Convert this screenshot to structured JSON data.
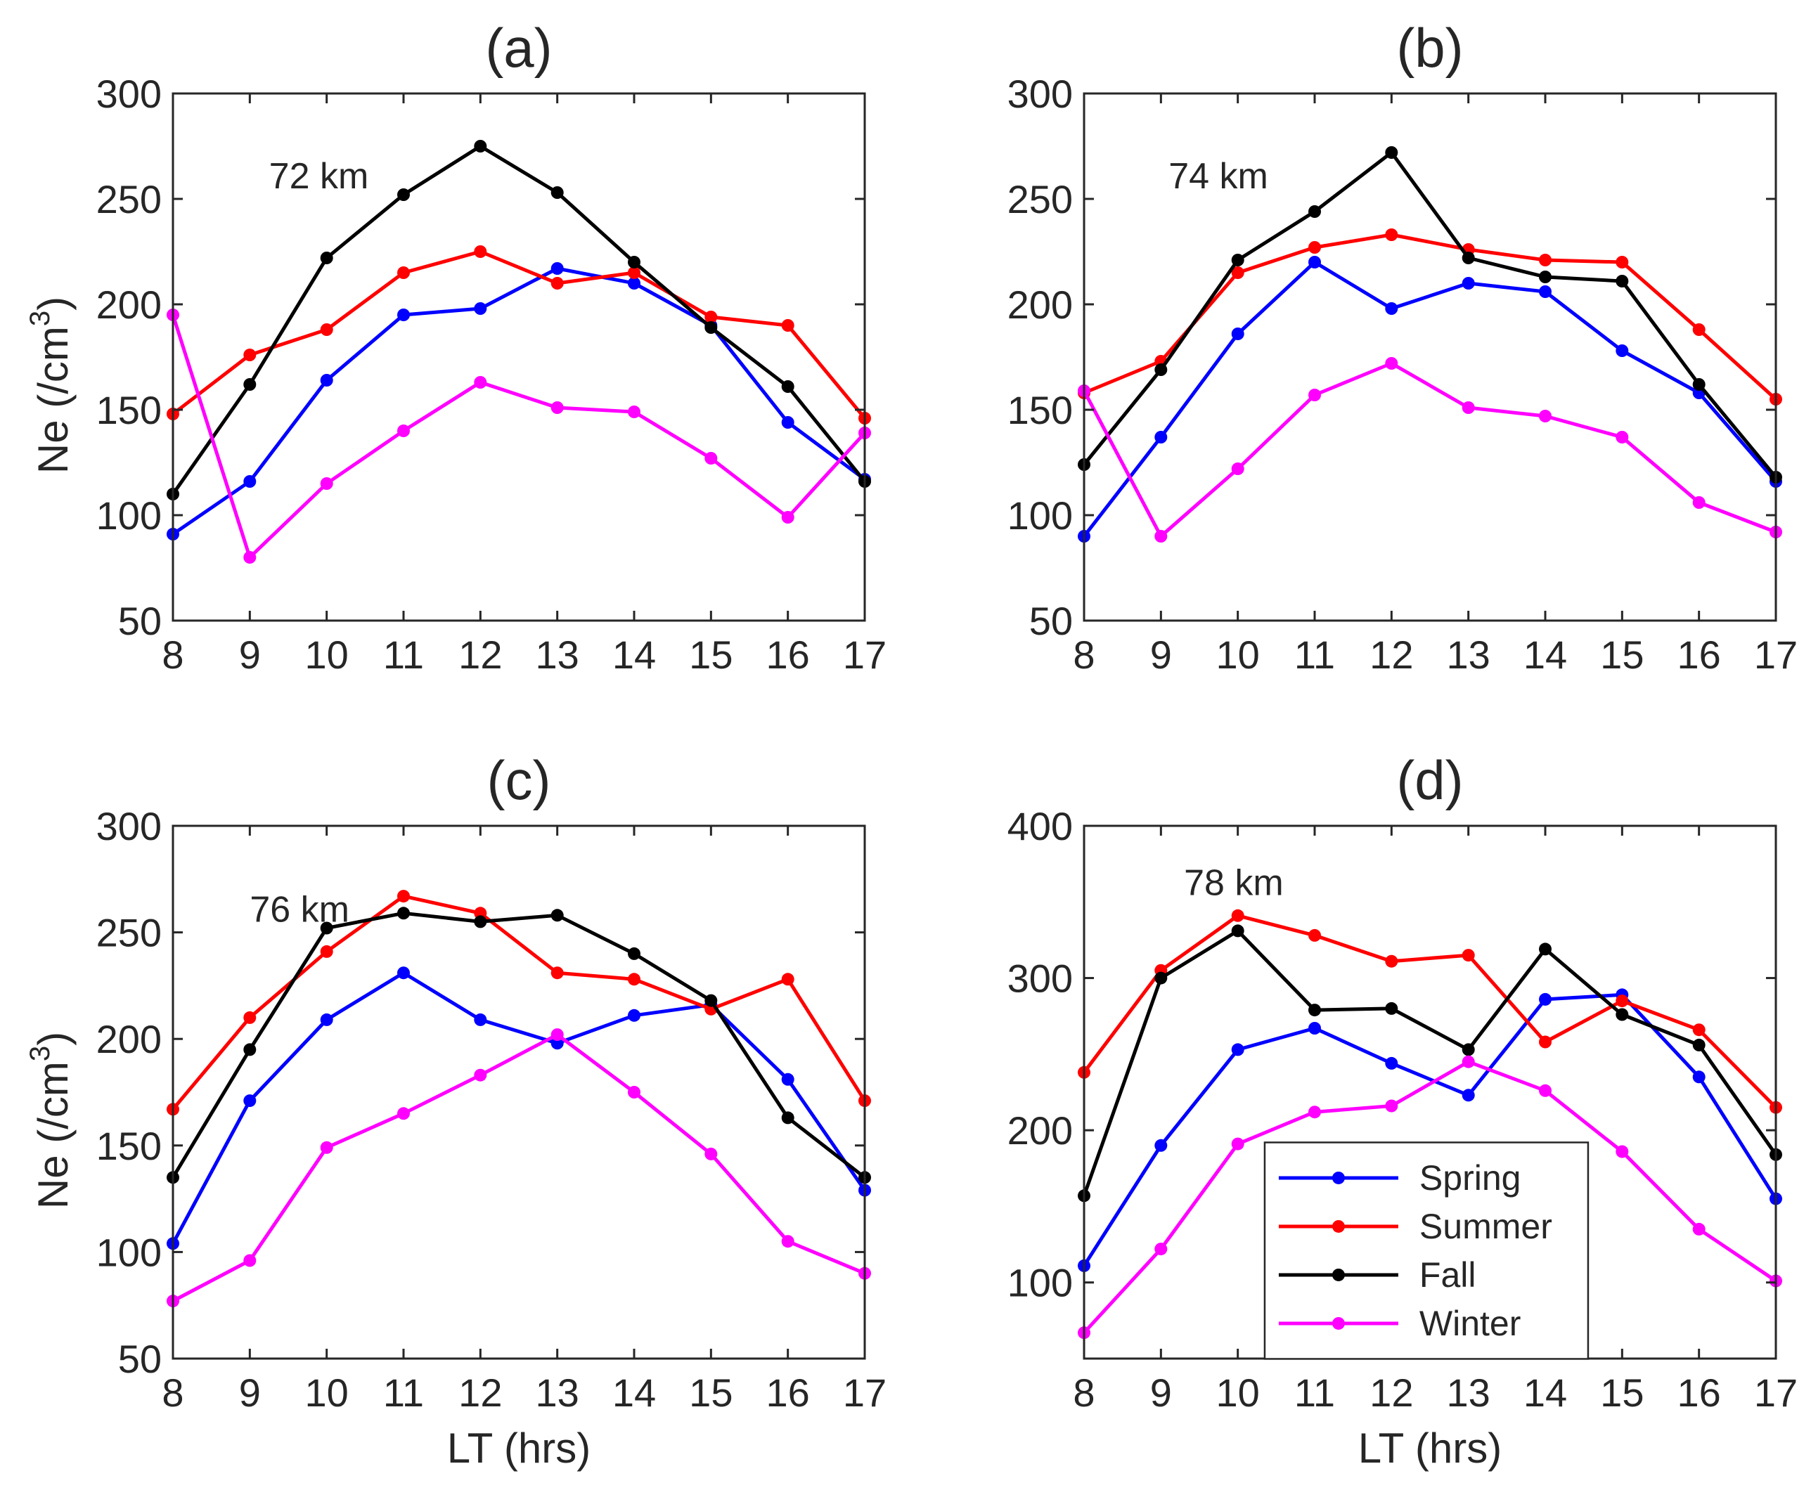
{
  "chart_data": [
    {
      "type": "line",
      "panel": "a",
      "title": "(a)",
      "annotation": "72 km",
      "xlabel": "",
      "ylabel": "Ne (/cm",
      "ylabel_superscript": "3",
      "ylabel_suffix": ")",
      "xlim": [
        8,
        17
      ],
      "ylim": [
        50,
        300
      ],
      "x": [
        8,
        9,
        10,
        11,
        12,
        13,
        14,
        15,
        16,
        17
      ],
      "xticks": [
        8,
        9,
        10,
        11,
        12,
        13,
        14,
        15,
        16,
        17
      ],
      "yticks": [
        50,
        100,
        150,
        200,
        250,
        300
      ],
      "grid": false,
      "legend": false,
      "series": [
        {
          "name": "Spring",
          "color": "#0000ff",
          "values": [
            91,
            116,
            164,
            195,
            198,
            217,
            210,
            190,
            144,
            117
          ]
        },
        {
          "name": "Summer",
          "color": "#ff0000",
          "values": [
            148,
            176,
            188,
            215,
            225,
            210,
            215,
            194,
            190,
            146
          ]
        },
        {
          "name": "Fall",
          "color": "#000000",
          "values": [
            110,
            162,
            222,
            252,
            275,
            253,
            220,
            189,
            161,
            116
          ]
        },
        {
          "name": "Winter",
          "color": "#ff00ff",
          "values": [
            195,
            80,
            115,
            140,
            163,
            151,
            149,
            127,
            99,
            139
          ]
        }
      ]
    },
    {
      "type": "line",
      "panel": "b",
      "title": "(b)",
      "annotation": "74 km",
      "xlabel": "",
      "ylabel": "",
      "xlim": [
        8,
        17
      ],
      "ylim": [
        50,
        300
      ],
      "x": [
        8,
        9,
        10,
        11,
        12,
        13,
        14,
        15,
        16,
        17
      ],
      "xticks": [
        8,
        9,
        10,
        11,
        12,
        13,
        14,
        15,
        16,
        17
      ],
      "yticks": [
        50,
        100,
        150,
        200,
        250,
        300
      ],
      "grid": false,
      "legend": false,
      "series": [
        {
          "name": "Spring",
          "color": "#0000ff",
          "values": [
            90,
            137,
            186,
            220,
            198,
            210,
            206,
            178,
            158,
            116
          ]
        },
        {
          "name": "Summer",
          "color": "#ff0000",
          "values": [
            158,
            173,
            215,
            227,
            233,
            226,
            221,
            220,
            188,
            155
          ]
        },
        {
          "name": "Fall",
          "color": "#000000",
          "values": [
            124,
            169,
            221,
            244,
            272,
            222,
            213,
            211,
            162,
            118
          ]
        },
        {
          "name": "Winter",
          "color": "#ff00ff",
          "values": [
            159,
            90,
            122,
            157,
            172,
            151,
            147,
            137,
            106,
            92
          ]
        }
      ]
    },
    {
      "type": "line",
      "panel": "c",
      "title": "(c)",
      "annotation": "76 km",
      "xlabel": "LT (hrs)",
      "ylabel": "Ne (/cm",
      "ylabel_superscript": "3",
      "ylabel_suffix": ")",
      "xlim": [
        8,
        17
      ],
      "ylim": [
        50,
        300
      ],
      "x": [
        8,
        9,
        10,
        11,
        12,
        13,
        14,
        15,
        16,
        17
      ],
      "xticks": [
        8,
        9,
        10,
        11,
        12,
        13,
        14,
        15,
        16,
        17
      ],
      "yticks": [
        50,
        100,
        150,
        200,
        250,
        300
      ],
      "grid": false,
      "legend": false,
      "series": [
        {
          "name": "Spring",
          "color": "#0000ff",
          "values": [
            104,
            171,
            209,
            231,
            209,
            198,
            211,
            216,
            181,
            129
          ]
        },
        {
          "name": "Summer",
          "color": "#ff0000",
          "values": [
            167,
            210,
            241,
            267,
            259,
            231,
            228,
            214,
            228,
            171
          ]
        },
        {
          "name": "Fall",
          "color": "#000000",
          "values": [
            135,
            195,
            252,
            259,
            255,
            258,
            240,
            218,
            163,
            135
          ]
        },
        {
          "name": "Winter",
          "color": "#ff00ff",
          "values": [
            77,
            96,
            149,
            165,
            183,
            202,
            175,
            146,
            105,
            90
          ]
        }
      ]
    },
    {
      "type": "line",
      "panel": "d",
      "title": "(d)",
      "annotation": "78 km",
      "xlabel": "LT (hrs)",
      "ylabel": "",
      "xlim": [
        8,
        17
      ],
      "ylim": [
        50,
        400
      ],
      "x": [
        8,
        9,
        10,
        11,
        12,
        13,
        14,
        15,
        16,
        17
      ],
      "xticks": [
        8,
        9,
        10,
        11,
        12,
        13,
        14,
        15,
        16,
        17
      ],
      "yticks": [
        100,
        200,
        300,
        400
      ],
      "grid": false,
      "legend": true,
      "legend_position": "bottom-center",
      "series": [
        {
          "name": "Spring",
          "color": "#0000ff",
          "values": [
            111,
            190,
            253,
            267,
            244,
            223,
            286,
            289,
            235,
            155
          ]
        },
        {
          "name": "Summer",
          "color": "#ff0000",
          "values": [
            238,
            305,
            341,
            328,
            311,
            315,
            258,
            285,
            266,
            215
          ]
        },
        {
          "name": "Fall",
          "color": "#000000",
          "values": [
            157,
            300,
            331,
            279,
            280,
            253,
            319,
            276,
            256,
            184
          ]
        },
        {
          "name": "Winter",
          "color": "#ff00ff",
          "values": [
            67,
            122,
            191,
            212,
            216,
            245,
            226,
            186,
            135,
            101
          ]
        }
      ]
    }
  ]
}
